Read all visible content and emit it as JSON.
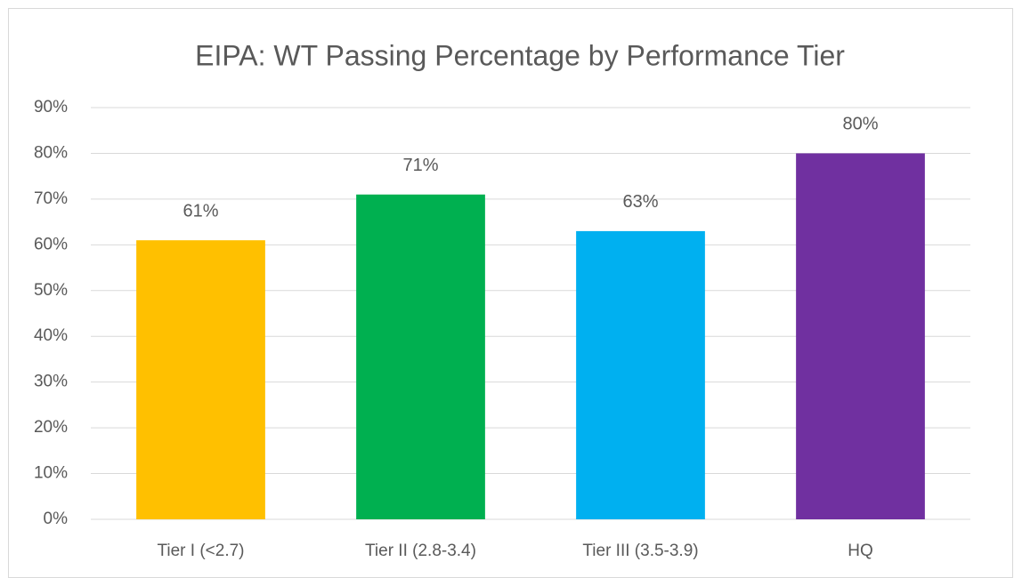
{
  "chart_data": {
    "type": "bar",
    "title": "EIPA: WT Passing Percentage by Performance Tier",
    "categories": [
      "Tier I (<2.7)",
      "Tier II (2.8-3.4)",
      "Tier III (3.5-3.9)",
      "HQ"
    ],
    "values": [
      61,
      71,
      63,
      80
    ],
    "value_labels": [
      "61%",
      "71%",
      "63%",
      "80%"
    ],
    "colors": [
      "#ffc000",
      "#00b050",
      "#00b0f0",
      "#7030a0"
    ],
    "ylim": [
      0,
      90
    ],
    "yticks": [
      {
        "value": 0,
        "label": "0%"
      },
      {
        "value": 10,
        "label": "10%"
      },
      {
        "value": 20,
        "label": "20%"
      },
      {
        "value": 30,
        "label": "30%"
      },
      {
        "value": 40,
        "label": "40%"
      },
      {
        "value": 50,
        "label": "50%"
      },
      {
        "value": 60,
        "label": "60%"
      },
      {
        "value": 70,
        "label": "70%"
      },
      {
        "value": 80,
        "label": "80%"
      },
      {
        "value": 90,
        "label": "90%"
      }
    ],
    "grid": true
  }
}
